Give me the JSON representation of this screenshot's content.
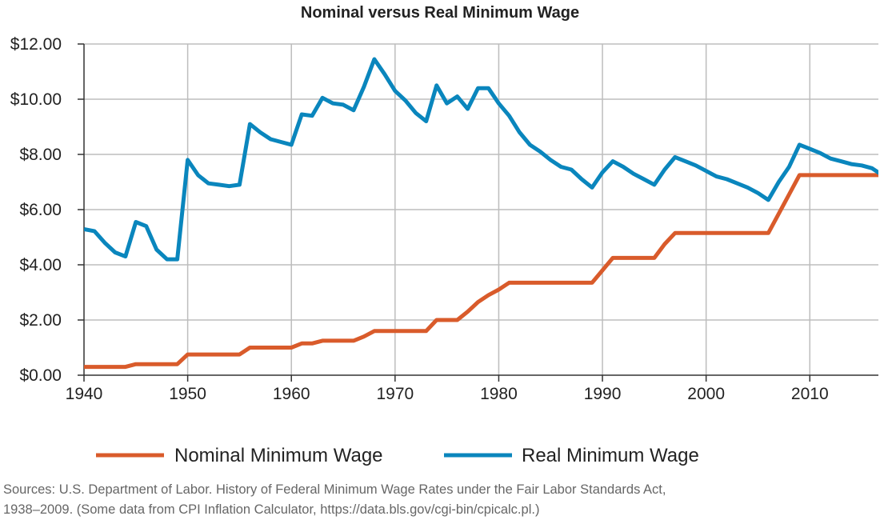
{
  "chart_data": {
    "type": "line",
    "title": "Nominal versus Real Minimum Wage",
    "xlabel": "",
    "ylabel": "",
    "xlim": [
      1940,
      2017
    ],
    "ylim": [
      0,
      12
    ],
    "grid": true,
    "legend_position": "bottom",
    "x_ticks": [
      "1940",
      "1950",
      "1960",
      "1970",
      "1980",
      "1990",
      "2000",
      "2010"
    ],
    "y_ticks": [
      "$0.00",
      "$2.00",
      "$4.00",
      "$6.00",
      "$8.00",
      "$10.00",
      "$12.00"
    ],
    "x": [
      1940,
      1941,
      1942,
      1943,
      1944,
      1945,
      1946,
      1947,
      1948,
      1949,
      1950,
      1951,
      1952,
      1953,
      1954,
      1955,
      1956,
      1957,
      1958,
      1959,
      1960,
      1961,
      1962,
      1963,
      1964,
      1965,
      1966,
      1967,
      1968,
      1969,
      1970,
      1971,
      1972,
      1973,
      1974,
      1975,
      1976,
      1977,
      1978,
      1979,
      1980,
      1981,
      1982,
      1983,
      1984,
      1985,
      1986,
      1987,
      1988,
      1989,
      1990,
      1991,
      1992,
      1993,
      1994,
      1995,
      1996,
      1997,
      1998,
      1999,
      2000,
      2001,
      2002,
      2003,
      2004,
      2005,
      2006,
      2007,
      2008,
      2009,
      2010,
      2011,
      2012,
      2013,
      2014,
      2015,
      2016,
      2017
    ],
    "series": [
      {
        "name": "Nominal Minimum Wage",
        "color": "#d95b2b",
        "values": [
          0.3,
          0.3,
          0.3,
          0.3,
          0.3,
          0.4,
          0.4,
          0.4,
          0.4,
          0.4,
          0.75,
          0.75,
          0.75,
          0.75,
          0.75,
          0.75,
          1.0,
          1.0,
          1.0,
          1.0,
          1.0,
          1.15,
          1.15,
          1.25,
          1.25,
          1.25,
          1.25,
          1.4,
          1.6,
          1.6,
          1.6,
          1.6,
          1.6,
          1.6,
          2.0,
          2.0,
          2.0,
          2.3,
          2.65,
          2.9,
          3.1,
          3.35,
          3.35,
          3.35,
          3.35,
          3.35,
          3.35,
          3.35,
          3.35,
          3.35,
          3.8,
          4.25,
          4.25,
          4.25,
          4.25,
          4.25,
          4.75,
          5.15,
          5.15,
          5.15,
          5.15,
          5.15,
          5.15,
          5.15,
          5.15,
          5.15,
          5.15,
          5.85,
          6.55,
          7.25,
          7.25,
          7.25,
          7.25,
          7.25,
          7.25,
          7.25,
          7.25,
          7.25
        ]
      },
      {
        "name": "Real Minimum Wage",
        "color": "#0a86bd",
        "values": [
          5.29,
          5.22,
          4.8,
          4.45,
          4.3,
          5.55,
          5.4,
          4.55,
          4.2,
          4.2,
          7.8,
          7.25,
          6.95,
          6.9,
          6.85,
          6.9,
          9.1,
          8.8,
          8.55,
          8.45,
          8.35,
          9.45,
          9.4,
          10.05,
          9.85,
          9.8,
          9.6,
          10.45,
          11.45,
          10.9,
          10.3,
          9.95,
          9.5,
          9.2,
          10.5,
          9.85,
          10.1,
          9.65,
          10.4,
          10.4,
          9.85,
          9.4,
          8.8,
          8.35,
          8.1,
          7.8,
          7.55,
          7.45,
          7.1,
          6.8,
          7.35,
          7.75,
          7.55,
          7.3,
          7.1,
          6.9,
          7.45,
          7.9,
          7.75,
          7.6,
          7.4,
          7.2,
          7.1,
          6.95,
          6.8,
          6.6,
          6.35,
          7.0,
          7.55,
          8.35,
          8.2,
          8.05,
          7.85,
          7.75,
          7.65,
          7.6,
          7.5,
          7.25
        ]
      }
    ]
  },
  "sources": {
    "line1": "Sources: U.S. Department of Labor. History of Federal Minimum Wage Rates under the Fair Labor Standards Act,",
    "line2": "1938–2009. (Some data from CPI Inflation Calculator, https://data.bls.gov/cgi-bin/cpicalc.pl.)"
  }
}
